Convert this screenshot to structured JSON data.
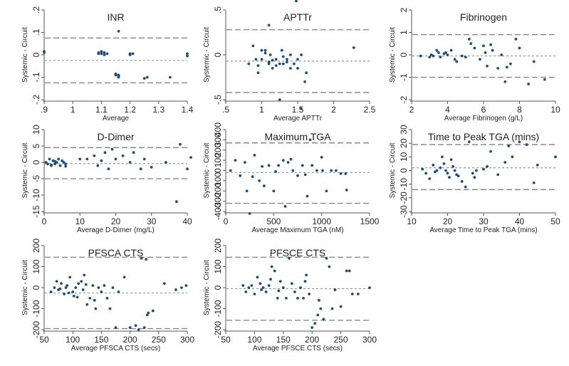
{
  "colors": {
    "point": "#1f4e79",
    "axis": "#555555",
    "loa": "#7f7f7f",
    "mean": "#8c8c8c",
    "text": "#222222"
  },
  "chart_data": [
    {
      "type": "scatter",
      "title": "INR",
      "xlabel": "Average",
      "ylabel": "Systemic - Circuit",
      "xlim": [
        0.9,
        1.4
      ],
      "ylim": [
        -0.2,
        0.2
      ],
      "xticks": [
        0.9,
        1,
        1.1,
        1.2,
        1.3,
        1.4
      ],
      "xtick_labels": [
        ".9",
        "1",
        "1.1",
        "1.2",
        "1.3",
        "1.4"
      ],
      "yticks": [
        -0.2,
        -0.1,
        0,
        0.1,
        0.2
      ],
      "ytick_labels": [
        "-.2",
        "-.1",
        "0",
        ".1",
        ".2"
      ],
      "mean_diff": -0.025,
      "loa": [
        -0.125,
        0.075
      ],
      "x": [
        0.9,
        0.9,
        1.09,
        1.09,
        1.1,
        1.1,
        1.11,
        1.11,
        1.1,
        1.12,
        1.2,
        1.2,
        1.21,
        1.15,
        1.15,
        1.16,
        1.16,
        1.15,
        1.16,
        1.25,
        1.26,
        1.34,
        1.4,
        1.4,
        1.16
      ],
      "y": [
        0.01,
        0.015,
        0.005,
        0.01,
        0.015,
        0.005,
        0.0,
        0.01,
        0.015,
        0.005,
        0.005,
        0.0,
        0.005,
        -0.085,
        -0.09,
        -0.095,
        -0.1,
        -0.09,
        -0.09,
        -0.105,
        -0.1,
        -0.1,
        0.005,
        -0.005,
        0.105
      ]
    },
    {
      "type": "scatter",
      "title": "APTTr",
      "xlabel": "Average APTTr",
      "ylabel": "Systemic - Circuit",
      "xlim": [
        0.5,
        2.5
      ],
      "ylim": [
        -0.5,
        0.5
      ],
      "xticks": [
        0.5,
        1,
        1.5,
        2,
        2.5
      ],
      "xtick_labels": [
        ".5",
        "1",
        "1.5",
        "2",
        "2.5"
      ],
      "yticks": [
        -0.5,
        0,
        0.5
      ],
      "ytick_labels": [
        "-.5",
        "0",
        ".5"
      ],
      "mean_diff": -0.07,
      "loa": [
        -0.42,
        0.28
      ],
      "x": [
        0.82,
        0.88,
        0.92,
        0.95,
        1.0,
        1.05,
        1.1,
        1.12,
        1.15,
        1.2,
        1.25,
        1.28,
        1.3,
        1.35,
        1.4,
        1.45,
        1.5,
        1.55,
        1.6,
        1.0,
        1.1,
        1.2,
        1.3,
        1.4,
        1.48,
        1.55,
        1.25,
        1.5,
        1.1,
        2.28,
        1.62,
        1.35,
        0.95,
        1.05,
        1.15
      ],
      "y": [
        -0.1,
        0.1,
        -0.05,
        -0.2,
        -0.05,
        0.05,
        -0.1,
        0.0,
        -0.15,
        -0.05,
        -0.1,
        0.05,
        -0.1,
        -0.05,
        0.0,
        -0.1,
        -0.05,
        0.0,
        -0.3,
        0.05,
        -0.08,
        -0.12,
        -0.02,
        -0.15,
        0.6,
        -0.6,
        -0.5,
        -0.15,
        0.33,
        0.08,
        -0.2,
        -0.08,
        -0.12,
        0.02,
        -0.06
      ]
    },
    {
      "type": "scatter",
      "title": "Fibrinogen",
      "xlabel": "Average Fibrinogen (g/L)",
      "ylabel": "Systemic - Circuit",
      "xlim": [
        2,
        10
      ],
      "ylim": [
        -2,
        2
      ],
      "xticks": [
        2,
        4,
        6,
        8,
        10
      ],
      "xtick_labels": [
        "2",
        "4",
        "6",
        "8",
        "10"
      ],
      "yticks": [
        -2,
        -1,
        0,
        1,
        2
      ],
      "ytick_labels": [
        "-2",
        "-1",
        "0",
        "1",
        "2"
      ],
      "mean_diff": -0.05,
      "loa": [
        -1.0,
        0.9
      ],
      "x": [
        2.5,
        3.0,
        3.2,
        3.5,
        3.6,
        3.8,
        4.0,
        4.2,
        4.5,
        5.0,
        5.2,
        5.5,
        5.8,
        6.0,
        6.2,
        6.5,
        6.8,
        7.0,
        7.2,
        7.5,
        8.0,
        8.5,
        3.4,
        3.9,
        4.4,
        5.3,
        6.1,
        7.8,
        9.4,
        3.1,
        4.8,
        6.4,
        7.3,
        8.8
      ],
      "y": [
        -0.05,
        -0.1,
        -0.05,
        0.1,
        -0.1,
        0.05,
        0.0,
        0.2,
        -0.3,
        -0.1,
        0.7,
        0.3,
        -0.2,
        0.4,
        -0.5,
        0.2,
        -0.6,
        0.0,
        -1.2,
        -0.4,
        0.3,
        -1.3,
        0.2,
        0.1,
        -0.2,
        0.5,
        0.1,
        0.7,
        -1.1,
        0.0,
        -0.05,
        0.45,
        -0.55,
        -0.3
      ]
    },
    {
      "type": "scatter",
      "title": "D-Dimer",
      "xlabel": "Average D-Dimer (mg/L)",
      "ylabel": "Systemic - Circuit",
      "xlim": [
        0,
        40
      ],
      "ylim": [
        -15,
        10
      ],
      "xticks": [
        0,
        10,
        20,
        30,
        40
      ],
      "xtick_labels": [
        "0",
        "10",
        "20",
        "30",
        "40"
      ],
      "yticks": [
        -15,
        -10,
        -5,
        0,
        5,
        10
      ],
      "ytick_labels": [
        "-15",
        "-10",
        "-5",
        "0",
        "5",
        "10"
      ],
      "mean_diff": -0.4,
      "loa": [
        -5.0,
        4.5
      ],
      "x": [
        0.5,
        1,
        1.5,
        2,
        2.5,
        3,
        3.5,
        4,
        4.5,
        5,
        5.5,
        6,
        10,
        12,
        14,
        15,
        16,
        17,
        18,
        19,
        20,
        22,
        24,
        25,
        27,
        28,
        30,
        34,
        37,
        38,
        40,
        41,
        2,
        3,
        6
      ],
      "y": [
        0,
        -0.5,
        1,
        -1,
        0.5,
        -0.5,
        0,
        1,
        -1,
        0.5,
        0,
        -0.5,
        1,
        1,
        2,
        -1,
        0.5,
        3,
        -2,
        4,
        1,
        2,
        0,
        3,
        -2,
        1,
        -1.5,
        0,
        -12,
        5.5,
        -2,
        1.5,
        -0.8,
        0.3,
        -1.2
      ]
    },
    {
      "type": "scatter",
      "title": "Maximum TGA",
      "xlabel": "Average Maximum TGA (nM)",
      "ylabel": "Systemic - Circuit",
      "xlim": [
        0,
        1500
      ],
      "ylim": [
        -400,
        400
      ],
      "xticks": [
        0,
        500,
        1000,
        1500
      ],
      "xtick_labels": [
        "0",
        "500",
        "1000",
        "1500"
      ],
      "yticks": [
        -400,
        -300,
        -200,
        -100,
        0,
        100,
        200,
        300,
        400
      ],
      "ytick_labels": [
        "-400",
        "-300",
        "-200",
        "-100",
        "0",
        "100",
        "200",
        "300",
        "400"
      ],
      "mean_diff": -20,
      "loa": [
        -320,
        270
      ],
      "x": [
        50,
        100,
        150,
        200,
        250,
        300,
        350,
        400,
        450,
        500,
        550,
        600,
        620,
        650,
        700,
        750,
        800,
        850,
        880,
        900,
        950,
        1000,
        1050,
        1100,
        1150,
        1200,
        1250,
        220,
        280,
        380,
        520,
        680,
        830,
        1010,
        1260
      ],
      "y": [
        0,
        100,
        -50,
        80,
        -420,
        150,
        -100,
        -150,
        50,
        -200,
        50,
        100,
        -350,
        80,
        0,
        -50,
        50,
        -250,
        300,
        50,
        0,
        130,
        -200,
        0,
        0,
        -30,
        -30,
        -200,
        -60,
        40,
        -10,
        110,
        -40,
        0,
        -190
      ]
    },
    {
      "type": "scatter",
      "title": "Time to Peak TGA (mins)",
      "xlabel": "Average Time to Peak TGA (mins)",
      "ylabel": "Systemic - Circuit",
      "xlim": [
        10,
        50
      ],
      "ylim": [
        -30,
        30
      ],
      "xticks": [
        10,
        20,
        30,
        40,
        50
      ],
      "xtick_labels": [
        "10",
        "20",
        "30",
        "40",
        "50"
      ],
      "yticks": [
        -30,
        -20,
        -10,
        0,
        10,
        20,
        30
      ],
      "ytick_labels": [
        "-30",
        "-20",
        "-10",
        "0",
        "10",
        "20",
        "30"
      ],
      "mean_diff": 2,
      "loa": [
        -14,
        19
      ],
      "x": [
        13,
        14,
        15,
        16,
        17,
        18,
        18.5,
        19,
        19.5,
        20,
        20.5,
        21,
        21.5,
        22,
        23,
        24,
        25,
        26,
        27,
        28,
        30,
        32,
        34,
        36,
        38,
        40,
        42,
        44,
        50,
        16.5,
        22.5,
        27.5,
        31,
        37,
        45
      ],
      "y": [
        1,
        -2,
        -6,
        4,
        0,
        2,
        10,
        5,
        0,
        -2,
        -5,
        8,
        3,
        0,
        -4,
        -8,
        -12,
        21,
        -2,
        0,
        1,
        14,
        -3,
        6,
        10,
        21,
        19,
        -9,
        10,
        -1,
        -3,
        -5,
        3,
        18,
        4
      ]
    },
    {
      "type": "scatter",
      "title": "PFSCA CTS",
      "xlabel": "Average PFSCA CTS (secs)",
      "ylabel": "Systemic - Circuit",
      "xlim": [
        50,
        300
      ],
      "ylim": [
        -200,
        200
      ],
      "xticks": [
        50,
        100,
        150,
        200,
        250,
        300
      ],
      "xtick_labels": [
        "50",
        "100",
        "150",
        "200",
        "250",
        "300"
      ],
      "yticks": [
        -200,
        -100,
        0,
        100,
        200
      ],
      "ytick_labels": [
        "-200",
        "-100",
        "0",
        "100",
        "200"
      ],
      "mean_diff": -25,
      "loa": [
        -195,
        145
      ],
      "x": [
        62,
        68,
        72,
        75,
        80,
        85,
        88,
        90,
        95,
        100,
        102,
        105,
        110,
        115,
        118,
        120,
        125,
        130,
        135,
        140,
        145,
        150,
        155,
        160,
        165,
        170,
        175,
        180,
        190,
        200,
        210,
        215,
        220,
        225,
        230,
        240,
        260,
        280,
        290,
        298,
        78,
        93,
        108,
        123,
        138,
        228,
        232
      ],
      "y": [
        -20,
        0,
        30,
        -10,
        20,
        -30,
        0,
        10,
        50,
        -20,
        -40,
        0,
        20,
        30,
        -10,
        60,
        -80,
        -50,
        10,
        -100,
        0,
        -20,
        10,
        -50,
        -100,
        0,
        -190,
        -20,
        50,
        -190,
        -180,
        -200,
        140,
        -190,
        -130,
        -110,
        20,
        -10,
        0,
        10,
        -5,
        -25,
        -45,
        15,
        -60,
        135,
        -120
      ]
    },
    {
      "type": "scatter",
      "title": "PFSCE CTS",
      "xlabel": "Average PFSCE CTS (secs)",
      "ylabel": "Systemic - Circuit",
      "xlim": [
        50,
        300
      ],
      "ylim": [
        -200,
        200
      ],
      "xticks": [
        50,
        100,
        150,
        200,
        250,
        300
      ],
      "xtick_labels": [
        "50",
        "100",
        "150",
        "200",
        "250",
        "300"
      ],
      "yticks": [
        -200,
        -100,
        0,
        100,
        200
      ],
      "ytick_labels": [
        "-200",
        "-100",
        "0",
        "100",
        "200"
      ],
      "mean_diff": -5,
      "loa": [
        -155,
        145
      ],
      "x": [
        80,
        85,
        90,
        95,
        100,
        105,
        110,
        115,
        120,
        125,
        130,
        135,
        140,
        145,
        150,
        155,
        160,
        165,
        170,
        175,
        180,
        185,
        190,
        195,
        200,
        205,
        210,
        215,
        220,
        225,
        230,
        235,
        240,
        250,
        260,
        265,
        270,
        280,
        300,
        112,
        128,
        142,
        188,
        212
      ],
      "y": [
        10,
        -20,
        0,
        10,
        -30,
        50,
        20,
        0,
        -20,
        10,
        100,
        80,
        -50,
        30,
        0,
        -50,
        140,
        20,
        -20,
        -50,
        0,
        -50,
        60,
        -30,
        -190,
        -170,
        -130,
        -100,
        -150,
        140,
        100,
        -100,
        -10,
        -90,
        80,
        80,
        -30,
        -30,
        0,
        -10,
        40,
        -15,
        30,
        -60
      ]
    }
  ]
}
